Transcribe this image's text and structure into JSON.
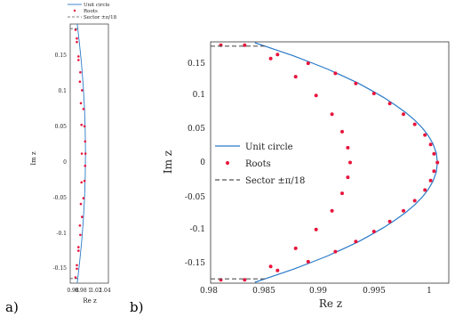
{
  "panels": {
    "a": {
      "label": "a)",
      "xlabel": "Re z",
      "ylabel": "Im z",
      "xticks": [
        "0.98",
        "0.98",
        "1",
        "1.02",
        "1.04"
      ],
      "yticks": [
        "0.15",
        "0.1",
        "0.05",
        "0",
        "-0.05",
        "-0.1",
        "-0.15"
      ]
    },
    "b": {
      "label": "b)",
      "xlabel": "Re z",
      "ylabel": "Im z",
      "xticks": [
        "0.98",
        "0.985",
        "0.99",
        "0.995",
        "1"
      ],
      "yticks": [
        "0.15",
        "0.1",
        "0.05",
        "0",
        "-0.05",
        "-0.1",
        "-0.15"
      ]
    }
  },
  "legend": {
    "unit_circle": "Unit circle",
    "roots": "Roots",
    "sector": "Sector ±π/18"
  },
  "colors": {
    "unit_circle": "#2a7ac8",
    "roots": "#e8143c",
    "sector": "#555555"
  },
  "chart_data": [
    {
      "type": "scatter",
      "panel": "a",
      "xlabel": "Re z",
      "ylabel": "Im z",
      "xlim": [
        0.97,
        1.045
      ],
      "ylim": [
        -0.18,
        0.18
      ],
      "series": [
        {
          "name": "Unit circle",
          "kind": "line",
          "color": "#2a7ac8",
          "x": [
            0.9838,
            0.9882,
            0.9921,
            0.9955,
            0.998,
            0.9995,
            1.0,
            0.9995,
            0.998,
            0.9955,
            0.9921,
            0.9882,
            0.9838
          ],
          "y": [
            -0.18,
            -0.153,
            -0.125,
            -0.095,
            -0.063,
            -0.032,
            0.0,
            0.032,
            0.063,
            0.095,
            0.125,
            0.153,
            0.18
          ]
        },
        {
          "name": "Roots",
          "kind": "points",
          "color": "#e8143c",
          "x": [
            0.9805,
            0.983,
            0.9862,
            0.9898,
            0.9932,
            0.996,
            0.998,
            0.9993,
            1.0,
            0.9993,
            0.998,
            0.996,
            0.9932,
            0.9898,
            0.9862,
            0.983,
            0.9805,
            0.983,
            0.9862,
            0.989,
            0.991,
            0.9922,
            0.9928,
            0.9922,
            0.991,
            0.989,
            0.9862,
            0.983
          ],
          "y": [
            0.172,
            0.155,
            0.135,
            0.113,
            0.088,
            0.062,
            0.038,
            0.017,
            0.0,
            -0.017,
            -0.038,
            -0.062,
            -0.088,
            -0.113,
            -0.135,
            -0.155,
            -0.172,
            0.16,
            0.13,
            0.1,
            0.07,
            0.04,
            0.0,
            -0.04,
            -0.07,
            -0.1,
            -0.13,
            -0.16
          ]
        },
        {
          "name": "Sector ±π/18",
          "kind": "dashed",
          "color": "#555555",
          "segments": [
            {
              "x": [
                0.97,
                0.9848
              ],
              "y": [
                0.1736,
                0.1736
              ]
            },
            {
              "x": [
                0.97,
                0.9848
              ],
              "y": [
                -0.1736,
                -0.1736
              ]
            }
          ]
        }
      ]
    },
    {
      "type": "scatter",
      "panel": "b",
      "xlabel": "Re z",
      "ylabel": "Im z",
      "xlim": [
        0.98,
        1.001
      ],
      "ylim": [
        -0.18,
        0.18
      ],
      "series": [
        {
          "name": "Unit circle",
          "kind": "line",
          "color": "#2a7ac8",
          "x": [
            0.9839,
            0.9856,
            0.9873,
            0.9888,
            0.9903,
            0.9917,
            0.993,
            0.9942,
            0.9953,
            0.9963,
            0.9972,
            0.998,
            0.9987,
            0.9992,
            0.9996,
            0.9999,
            1.0,
            0.9999,
            0.9996,
            0.9992,
            0.9987,
            0.998,
            0.9972,
            0.9963,
            0.9953,
            0.9942,
            0.993,
            0.9917,
            0.9903,
            0.9888,
            0.9873,
            0.9856,
            0.9839
          ],
          "y": [
            -0.1787,
            -0.169,
            -0.1592,
            -0.1494,
            -0.1395,
            -0.1287,
            -0.1185,
            -0.1074,
            -0.0966,
            -0.0855,
            -0.0745,
            -0.0632,
            -0.051,
            -0.04,
            -0.0283,
            -0.0141,
            0.0,
            0.0141,
            0.0283,
            0.04,
            0.051,
            0.0632,
            0.0745,
            0.0855,
            0.0966,
            0.1074,
            0.1185,
            0.1287,
            0.1395,
            0.1494,
            0.1592,
            0.169,
            0.1787
          ]
        },
        {
          "name": "Roots",
          "kind": "points",
          "color": "#e8143c",
          "x": [
            0.9809,
            0.9859,
            0.9886,
            0.991,
            0.9928,
            0.9944,
            0.9958,
            0.997,
            0.998,
            0.9989,
            0.9994,
            0.9997,
            1.0,
            0.9997,
            0.9994,
            0.9989,
            0.998,
            0.997,
            0.9958,
            0.9944,
            0.9928,
            0.991,
            0.9886,
            0.9859,
            0.9809,
            0.983,
            0.9853,
            0.9875,
            0.9893,
            0.9907,
            0.9916,
            0.9921,
            0.9923,
            0.9921,
            0.9916,
            0.9907,
            0.9893,
            0.9875,
            0.9853,
            0.983
          ],
          "y": [
            0.175,
            0.161,
            0.148,
            0.133,
            0.118,
            0.103,
            0.088,
            0.072,
            0.057,
            0.041,
            0.027,
            0.013,
            0.0,
            -0.013,
            -0.027,
            -0.041,
            -0.057,
            -0.072,
            -0.088,
            -0.103,
            -0.118,
            -0.133,
            -0.148,
            -0.161,
            -0.175,
            0.175,
            0.155,
            0.128,
            0.1,
            0.072,
            0.046,
            0.022,
            0.0,
            -0.022,
            -0.046,
            -0.072,
            -0.1,
            -0.128,
            -0.155,
            -0.175
          ]
        },
        {
          "name": "Sector ±π/18",
          "kind": "dashed",
          "color": "#555555",
          "segments": [
            {
              "x": [
                0.98,
                0.9848
              ],
              "y": [
                0.1736,
                0.1736
              ]
            },
            {
              "x": [
                0.98,
                0.9848
              ],
              "y": [
                -0.1736,
                -0.1736
              ]
            }
          ]
        }
      ]
    }
  ]
}
